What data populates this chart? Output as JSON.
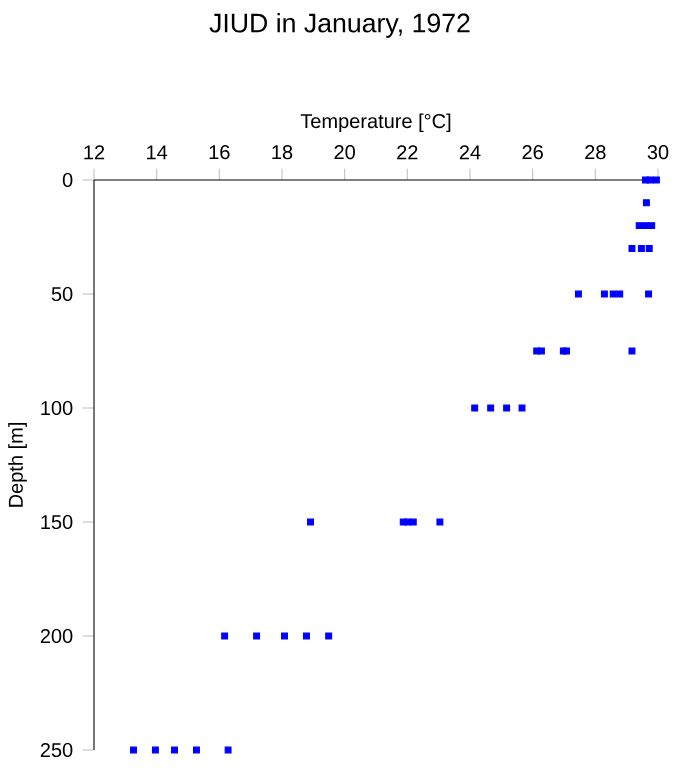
{
  "chart_data": {
    "type": "scatter",
    "title": "JIUD in January, 1972",
    "xlabel": "Temperature [°C]",
    "ylabel": "Depth [m]",
    "x": [
      29.6,
      29.75,
      29.95,
      29.63,
      29.4,
      29.6,
      29.8,
      29.17,
      29.47,
      29.72,
      27.46,
      28.29,
      28.57,
      28.78,
      29.7,
      26.13,
      26.28,
      26.98,
      27.08,
      29.17,
      24.15,
      24.66,
      25.17,
      25.66,
      18.91,
      21.87,
      22.02,
      22.19,
      23.04,
      16.17,
      17.19,
      18.08,
      18.78,
      19.49,
      13.26,
      13.96,
      14.57,
      15.27,
      16.28
    ],
    "values": [
      0,
      0,
      0,
      10,
      20,
      20,
      20,
      30,
      30,
      30,
      50,
      50,
      50,
      50,
      50,
      75,
      75,
      75,
      75,
      75,
      100,
      100,
      100,
      100,
      150,
      150,
      150,
      150,
      150,
      200,
      200,
      200,
      200,
      200,
      250,
      250,
      250,
      250,
      250
    ],
    "color": "#0000ff",
    "marker": "square",
    "xlim": [
      12,
      30
    ],
    "xticks": [
      12,
      14,
      16,
      18,
      20,
      22,
      24,
      26,
      28,
      30
    ],
    "ylim": [
      250,
      0
    ],
    "yticks": [
      0,
      50,
      100,
      150,
      200,
      250
    ],
    "grid": false
  }
}
